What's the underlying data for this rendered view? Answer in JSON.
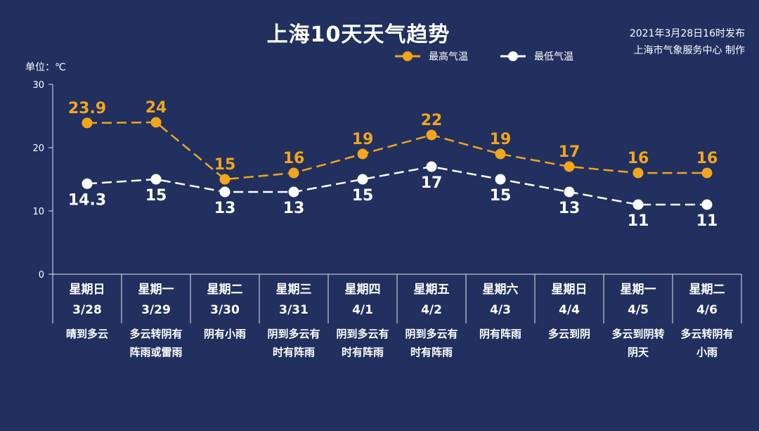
{
  "header": {
    "title": "上海10天天气趋势",
    "publish_line1": "2021年3月28日16时发布",
    "publish_line2": "上海市气象服务中心 制作"
  },
  "legend": {
    "high_label": "最高气温",
    "low_label": "最低气温"
  },
  "unit_label": "单位：℃",
  "colors": {
    "background": "#21305f",
    "high": "#f3a51b",
    "low": "#ffffff",
    "axis": "#e6e6e6"
  },
  "chart_data": {
    "type": "line",
    "categories": [
      "3/28",
      "3/29",
      "3/30",
      "3/31",
      "4/1",
      "4/2",
      "4/3",
      "4/4",
      "4/5",
      "4/6"
    ],
    "weekdays": [
      "星期日",
      "星期一",
      "星期二",
      "星期三",
      "星期四",
      "星期五",
      "星期六",
      "星期日",
      "星期一",
      "星期二"
    ],
    "weather": [
      [
        "晴到多云",
        ""
      ],
      [
        "多云转阴有",
        "阵雨或雷雨"
      ],
      [
        "阴有小雨",
        ""
      ],
      [
        "阴到多云有",
        "时有阵雨"
      ],
      [
        "阴到多云有",
        "时有阵雨"
      ],
      [
        "阴到多云有",
        "时有阵雨"
      ],
      [
        "阴有阵雨",
        ""
      ],
      [
        "多云到阴",
        ""
      ],
      [
        "多云到阴转",
        "阴天"
      ],
      [
        "多云转阴有",
        "小雨"
      ]
    ],
    "series": [
      {
        "name": "最高气温",
        "values": [
          23.9,
          24,
          15,
          16,
          19,
          22,
          19,
          17,
          16,
          16
        ],
        "labels": [
          "23.9",
          "24",
          "15",
          "16",
          "19",
          "22",
          "19",
          "17",
          "16",
          "16"
        ]
      },
      {
        "name": "最低气温",
        "values": [
          14.3,
          15,
          13,
          13,
          15,
          17,
          15,
          13,
          11,
          11
        ],
        "labels": [
          "14.3",
          "15",
          "13",
          "13",
          "15",
          "17",
          "15",
          "13",
          "11",
          "11"
        ]
      }
    ],
    "ylim": [
      0,
      30
    ],
    "yticks": [
      0,
      10,
      20,
      30
    ],
    "ylabel": "单位：℃",
    "grid": false,
    "legend_position": "top-center"
  }
}
